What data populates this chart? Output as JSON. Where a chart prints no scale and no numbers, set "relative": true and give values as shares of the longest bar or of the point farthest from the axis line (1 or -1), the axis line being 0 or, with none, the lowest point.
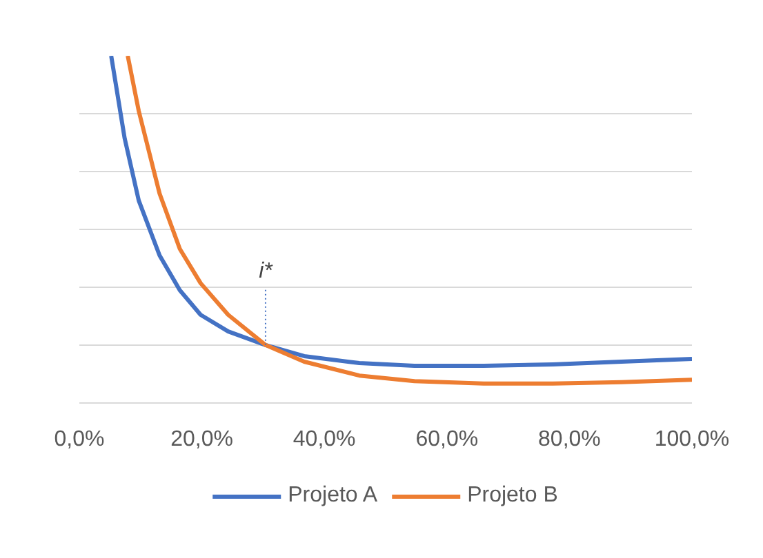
{
  "chart_data": {
    "type": "line",
    "relative": true,
    "xlim": [
      0,
      100
    ],
    "xticks": [
      {
        "value": 0,
        "label": "0,0%"
      },
      {
        "value": 20,
        "label": "20,0%"
      },
      {
        "value": 40,
        "label": "40,0%"
      },
      {
        "value": 60,
        "label": "60,0%"
      },
      {
        "value": 80,
        "label": "80,0%"
      },
      {
        "value": 100,
        "label": "100,0%"
      }
    ],
    "grid": "y",
    "legend": "bottom",
    "line_style": "solid",
    "annotations": [
      {
        "text": "i*",
        "x": 30.4,
        "y": 0.167
      }
    ],
    "series": [
      {
        "name": "Projeto A",
        "color": "#4472c4",
        "x": [
          5.2,
          7.4,
          9.7,
          13.1,
          16.4,
          19.8,
          24.3,
          30.4,
          36.7,
          45.7,
          54.7,
          66,
          77.3,
          88.5,
          100
        ],
        "values": [
          1.0,
          0.762,
          0.583,
          0.425,
          0.325,
          0.254,
          0.206,
          0.167,
          0.135,
          0.115,
          0.107,
          0.107,
          0.111,
          0.119,
          0.127
        ]
      },
      {
        "name": "Projeto B",
        "color": "#ed7d31",
        "x": [
          7.9,
          9.7,
          13.1,
          16.4,
          19.8,
          24.3,
          30.4,
          36.7,
          45.7,
          54.7,
          66,
          77.3,
          88.5,
          100
        ],
        "values": [
          1.0,
          0.841,
          0.603,
          0.444,
          0.345,
          0.254,
          0.167,
          0.119,
          0.079,
          0.063,
          0.056,
          0.056,
          0.06,
          0.067
        ]
      }
    ]
  }
}
